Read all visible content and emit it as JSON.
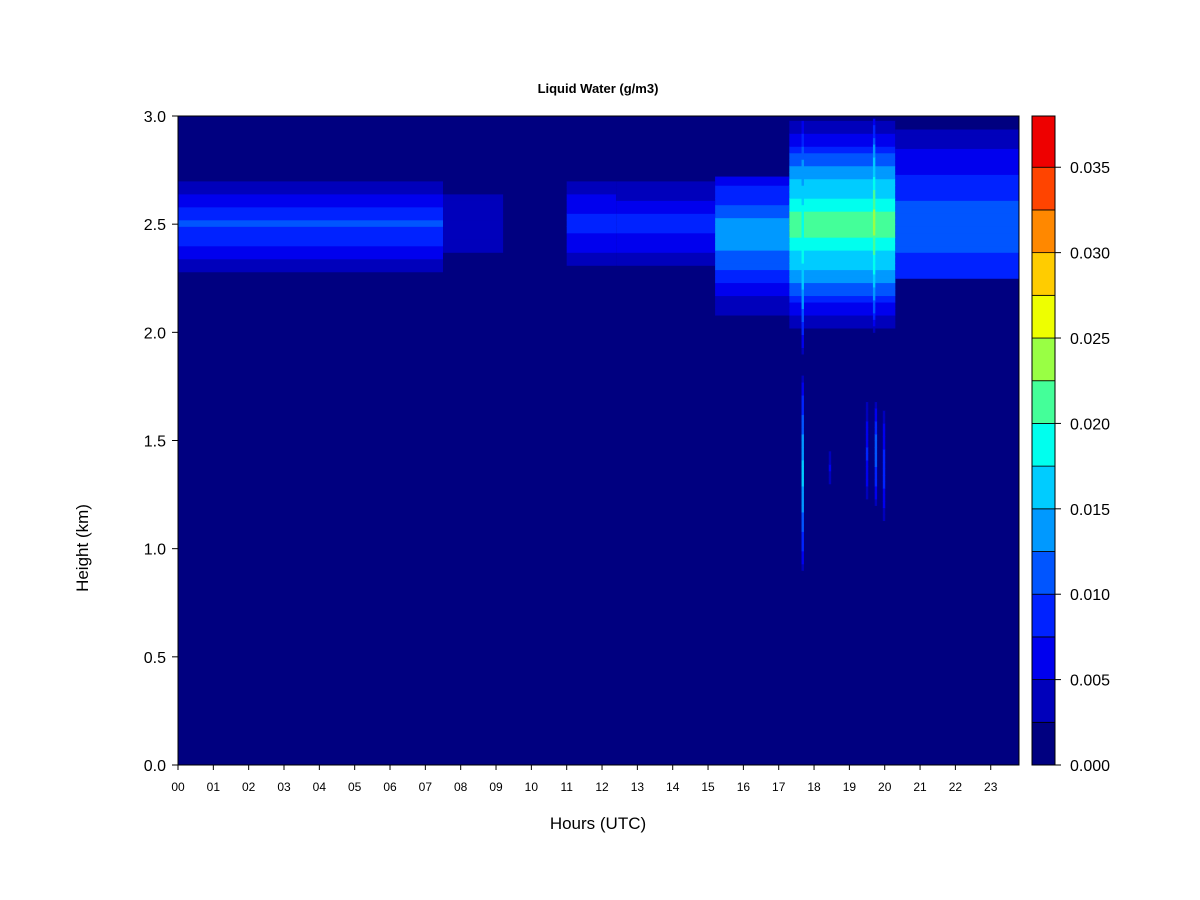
{
  "chart_data": {
    "type": "heatmap",
    "title": "Liquid Water (g/m3)",
    "xlabel": "Hours (UTC)",
    "ylabel": "Height (km)",
    "xlim": [
      0,
      23.8
    ],
    "ylim": [
      0.0,
      3.0
    ],
    "x_ticks": [
      {
        "value": 0,
        "label": "00"
      },
      {
        "value": 1,
        "label": "01"
      },
      {
        "value": 2,
        "label": "02"
      },
      {
        "value": 3,
        "label": "03"
      },
      {
        "value": 4,
        "label": "04"
      },
      {
        "value": 5,
        "label": "05"
      },
      {
        "value": 6,
        "label": "06"
      },
      {
        "value": 7,
        "label": "07"
      },
      {
        "value": 8,
        "label": "08"
      },
      {
        "value": 9,
        "label": "09"
      },
      {
        "value": 10,
        "label": "10"
      },
      {
        "value": 11,
        "label": "11"
      },
      {
        "value": 12,
        "label": "12"
      },
      {
        "value": 13,
        "label": "13"
      },
      {
        "value": 14,
        "label": "14"
      },
      {
        "value": 15,
        "label": "15"
      },
      {
        "value": 16,
        "label": "16"
      },
      {
        "value": 17,
        "label": "17"
      },
      {
        "value": 18,
        "label": "18"
      },
      {
        "value": 19,
        "label": "19"
      },
      {
        "value": 20,
        "label": "20"
      },
      {
        "value": 21,
        "label": "21"
      },
      {
        "value": 22,
        "label": "22"
      },
      {
        "value": 23,
        "label": "23"
      }
    ],
    "y_ticks": [
      {
        "value": 0.0,
        "label": "0.0"
      },
      {
        "value": 0.5,
        "label": "0.5"
      },
      {
        "value": 1.0,
        "label": "1.0"
      },
      {
        "value": 1.5,
        "label": "1.5"
      },
      {
        "value": 2.0,
        "label": "2.0"
      },
      {
        "value": 2.5,
        "label": "2.5"
      },
      {
        "value": 3.0,
        "label": "3.0"
      }
    ],
    "colorbar": {
      "min": 0.0,
      "max": 0.038,
      "levels": [
        0.0,
        0.0025,
        0.005,
        0.0075,
        0.01,
        0.0125,
        0.015,
        0.0175,
        0.02,
        0.0225,
        0.025,
        0.0275,
        0.03,
        0.0325,
        0.035,
        0.038
      ],
      "colors": [
        "#000080",
        "#0000bb",
        "#0000ee",
        "#0022ff",
        "#0055ff",
        "#0099ff",
        "#00ccff",
        "#00ffee",
        "#44ff99",
        "#99ff44",
        "#eeff00",
        "#ffcc00",
        "#ff8800",
        "#ff4400",
        "#ee0000",
        "#aa0000",
        "#800000"
      ],
      "ticks": [
        {
          "value": 0.0,
          "label": "0.000"
        },
        {
          "value": 0.005,
          "label": "0.005"
        },
        {
          "value": 0.01,
          "label": "0.010"
        },
        {
          "value": 0.015,
          "label": "0.015"
        },
        {
          "value": 0.02,
          "label": "0.020"
        },
        {
          "value": 0.025,
          "label": "0.025"
        },
        {
          "value": 0.03,
          "label": "0.030"
        },
        {
          "value": 0.035,
          "label": "0.035"
        }
      ]
    },
    "background_value": 0.0,
    "regions": [
      {
        "x": [
          0.0,
          7.5
        ],
        "y": [
          2.25,
          2.72
        ],
        "peak": 0.0105,
        "center_y": 2.5
      },
      {
        "x": [
          7.5,
          9.2
        ],
        "y": [
          2.25,
          2.72
        ],
        "peak": 0.005,
        "center_y": 2.5
      },
      {
        "x": [
          11.0,
          12.4
        ],
        "y": [
          2.25,
          2.72
        ],
        "peak": 0.009,
        "center_y": 2.5
      },
      {
        "x": [
          12.4,
          15.2
        ],
        "y": [
          2.25,
          2.72
        ],
        "peak": 0.0085,
        "center_y": 2.5
      },
      {
        "x": [
          15.2,
          17.3
        ],
        "y": [
          2.05,
          2.72
        ],
        "peak": 0.0145,
        "center_y": 2.45
      },
      {
        "x": [
          17.3,
          20.3
        ],
        "y": [
          2.02,
          3.0
        ],
        "peak": 0.0225,
        "center_y": 2.5
      },
      {
        "x": [
          20.3,
          23.8
        ],
        "y": [
          2.25,
          3.0
        ],
        "peak": 0.0125,
        "center_y": 2.5
      }
    ],
    "spikes": [
      {
        "x": 17.68,
        "y": [
          0.9,
          1.8
        ],
        "peak": 0.016
      },
      {
        "x": 18.45,
        "y": [
          1.3,
          1.45
        ],
        "peak": 0.006
      },
      {
        "x": 19.5,
        "y": [
          1.2,
          1.7
        ],
        "peak": 0.008
      },
      {
        "x": 19.75,
        "y": [
          1.2,
          1.7
        ],
        "peak": 0.012
      },
      {
        "x": 19.98,
        "y": [
          1.1,
          1.65
        ],
        "peak": 0.009
      },
      {
        "x": 17.68,
        "y": [
          1.9,
          3.0
        ],
        "peak": 0.02
      },
      {
        "x": 19.7,
        "y": [
          2.0,
          3.0
        ],
        "peak": 0.024
      }
    ]
  }
}
